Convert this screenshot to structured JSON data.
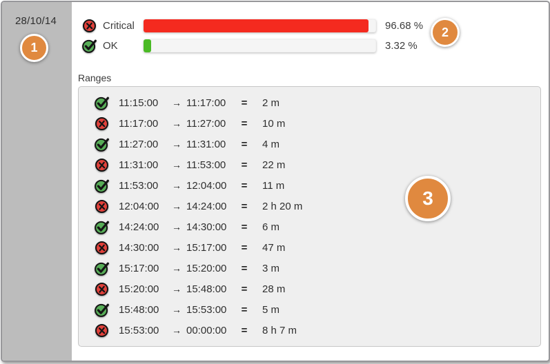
{
  "sidebar": {
    "date": "28/10/14",
    "badge_label": "1"
  },
  "summary": {
    "badge_label": "2",
    "rows": [
      {
        "status": "critical",
        "label": "Critical",
        "percent_text": "96.68 %",
        "value": 96.68,
        "bar_color": "#f42a1f"
      },
      {
        "status": "ok",
        "label": "OK",
        "percent_text": "3.32 %",
        "value": 3.32,
        "bar_color": "#4aba25"
      }
    ]
  },
  "ranges": {
    "title": "Ranges",
    "badge_label": "3",
    "arrow_glyph": "→",
    "equals_glyph": "=",
    "rows": [
      {
        "status": "ok",
        "start": "11:15:00",
        "end": "11:17:00",
        "duration": "2 m"
      },
      {
        "status": "critical",
        "start": "11:17:00",
        "end": "11:27:00",
        "duration": "10 m"
      },
      {
        "status": "ok",
        "start": "11:27:00",
        "end": "11:31:00",
        "duration": "4 m"
      },
      {
        "status": "critical",
        "start": "11:31:00",
        "end": "11:53:00",
        "duration": "22 m"
      },
      {
        "status": "ok",
        "start": "11:53:00",
        "end": "12:04:00",
        "duration": "11 m"
      },
      {
        "status": "critical",
        "start": "12:04:00",
        "end": "14:24:00",
        "duration": "2 h 20 m"
      },
      {
        "status": "ok",
        "start": "14:24:00",
        "end": "14:30:00",
        "duration": "6 m"
      },
      {
        "status": "critical",
        "start": "14:30:00",
        "end": "15:17:00",
        "duration": "47 m"
      },
      {
        "status": "ok",
        "start": "15:17:00",
        "end": "15:20:00",
        "duration": "3 m"
      },
      {
        "status": "critical",
        "start": "15:20:00",
        "end": "15:48:00",
        "duration": "28 m"
      },
      {
        "status": "ok",
        "start": "15:48:00",
        "end": "15:53:00",
        "duration": "5 m"
      },
      {
        "status": "critical",
        "start": "15:53:00",
        "end": "00:00:00",
        "duration": "8 h 7 m"
      }
    ]
  },
  "colors": {
    "badge_orange": "#e0893f",
    "sidebar_gray": "#bcbcbc",
    "critical_red": "#f42a1f",
    "ok_green": "#4aba25",
    "icon_green_fill": "#57ad57",
    "icon_red_fill": "#e2413b"
  },
  "chart_data": {
    "type": "bar",
    "categories": [
      "Critical",
      "OK"
    ],
    "values": [
      96.68,
      3.32
    ],
    "unit": "%",
    "title": "",
    "xlabel": "",
    "ylabel": "",
    "ylim": [
      0,
      100
    ]
  }
}
